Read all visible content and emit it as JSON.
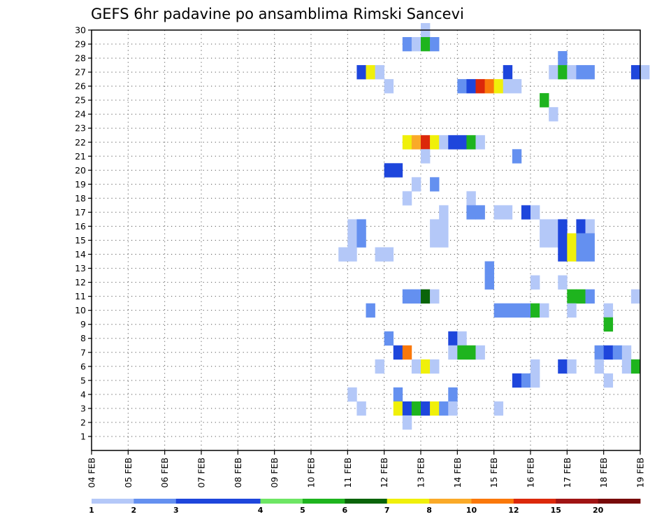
{
  "chart_data": {
    "type": "heatmap",
    "title": "GEFS 6hr padavine po ansamblima Rimski Sancevi",
    "xlabel": "",
    "ylabel": "",
    "x_tick_labels": [
      "04 FEB",
      "05 FEB",
      "06 FEB",
      "07 FEB",
      "08 FEB",
      "09 FEB",
      "10 FEB",
      "11 FEB",
      "12 FEB",
      "13 FEB",
      "14 FEB",
      "15 FEB",
      "16 FEB",
      "17 FEB",
      "18 FEB",
      "19 FEB"
    ],
    "x_range_days": [
      0,
      15
    ],
    "step_hours": 6,
    "y_tick_labels": [
      "1",
      "2",
      "3",
      "4",
      "5",
      "6",
      "7",
      "8",
      "9",
      "10",
      "11",
      "12",
      "13",
      "14",
      "15",
      "16",
      "17",
      "18",
      "19",
      "20",
      "21",
      "22",
      "23",
      "24",
      "25",
      "26",
      "27",
      "28",
      "29",
      "30"
    ],
    "ylim": [
      0,
      30
    ],
    "grid": true,
    "grid_style": "dotted",
    "colorbar": {
      "labels": [
        "1",
        "2",
        "3",
        "4",
        "5",
        "6",
        "7",
        "8",
        "10",
        "12",
        "15",
        "20"
      ],
      "colors": [
        "#b4c8f8",
        "#6490f0",
        "#1e46dc",
        "#1e46dc",
        "#6ee664",
        "#1eb41e",
        "#0a640a",
        "#f0f00a",
        "#faaa28",
        "#fa780a",
        "#dc280a",
        "#a01414",
        "#780a0a"
      ]
    },
    "cell_values": [
      [
        3,
        28,
        1
      ],
      [
        3,
        29,
        1
      ],
      [
        3,
        30,
        1
      ],
      [
        2,
        29,
        1
      ],
      [
        2,
        30,
        1
      ],
      [
        2,
        31,
        1
      ],
      [
        1,
        30,
        1
      ],
      [
        5,
        43,
        2
      ],
      [
        5,
        44,
        1
      ],
      [
        5,
        45,
        1
      ],
      [
        4,
        46,
        1
      ],
      [
        10,
        52,
        1
      ],
      [
        10,
        53,
        1
      ],
      [
        10,
        54,
        5
      ],
      [
        10,
        55,
        6
      ],
      [
        10,
        56,
        6
      ],
      [
        10,
        57,
        5
      ],
      [
        10,
        58,
        6
      ],
      [
        9,
        53,
        1
      ],
      [
        9,
        54,
        1
      ],
      [
        9,
        55,
        1
      ],
      [
        9,
        56,
        1
      ],
      [
        9,
        57,
        1
      ],
      [
        8,
        54,
        1
      ],
      [
        7,
        53,
        1
      ],
      [
        6,
        51,
        1
      ],
      [
        6,
        52,
        1
      ],
      [
        6,
        53,
        1
      ],
      [
        6,
        54,
        1
      ],
      [
        5,
        51,
        1
      ],
      [
        5,
        52,
        1
      ],
      [
        4,
        50,
        1
      ],
      [
        4,
        51,
        1
      ],
      [
        4,
        65,
        1
      ],
      [
        3,
        68,
        1
      ],
      [
        3,
        70,
        1
      ],
      [
        3,
        71,
        2
      ],
      [
        3,
        72,
        1
      ],
      [
        2,
        76,
        1
      ],
      [
        1,
        77,
        3
      ],
      [
        1,
        78,
        2
      ],
      [
        1,
        79,
        1
      ],
      [
        1,
        82,
        1
      ],
      [
        1,
        83,
        3
      ],
      [
        1,
        84,
        3
      ],
      [
        1,
        85,
        1
      ],
      [
        1,
        86,
        1
      ],
      [
        1,
        87,
        1
      ],
      [
        0,
        86,
        1
      ],
      [
        0,
        88,
        1
      ],
      [
        0,
        89,
        1
      ],
      [
        0,
        90,
        1
      ],
      [
        0,
        91,
        1
      ],
      [
        0,
        93,
        2
      ],
      [
        0,
        94,
        1
      ],
      [
        0,
        95,
        2
      ],
      [
        0,
        96,
        2
      ],
      [
        0,
        97,
        1
      ],
      [
        0,
        98,
        1
      ],
      [
        0,
        99,
        2
      ],
      [
        0,
        100,
        1
      ],
      [
        0,
        102,
        1
      ],
      [
        0,
        103,
        2
      ],
      [
        0,
        104,
        1
      ],
      [
        0,
        105,
        2
      ],
      [
        0,
        106,
        1
      ],
      [
        0,
        107,
        1
      ],
      [
        0,
        108,
        1
      ],
      [
        0,
        112,
        2
      ],
      [
        0,
        113,
        1
      ],
      [
        0,
        115,
        1
      ],
      [
        0,
        116,
        1
      ],
      [
        0,
        117,
        2
      ],
      [
        0,
        118,
        1
      ],
      [
        0,
        123,
        1
      ],
      [
        0,
        124,
        1
      ],
      [
        0,
        125,
        2
      ],
      [
        0,
        126,
        1
      ],
      [
        0,
        127,
        1
      ],
      [
        0,
        130,
        1
      ],
      [
        0,
        131,
        1
      ],
      [
        0,
        132,
        1
      ],
      [
        0,
        133,
        2
      ],
      [
        0,
        134,
        1
      ],
      [
        0,
        135,
        1
      ],
      [
        0,
        136,
        1
      ],
      [
        0,
        137,
        2
      ],
      [
        0,
        138,
        1
      ],
      [
        0,
        139,
        2
      ],
      [
        0,
        140,
        1
      ],
      [
        0,
        141,
        2
      ],
      [
        0,
        142,
        1
      ],
      [
        0,
        145,
        1
      ],
      [
        0,
        146,
        1
      ],
      [
        0,
        147,
        2
      ],
      [
        0,
        148,
        1
      ],
      [
        0,
        149,
        2
      ],
      [
        0,
        150,
        1
      ]
    ],
    "cells": [
      {
        "member": 30,
        "col": 36,
        "value": 1
      },
      {
        "member": 29,
        "col": 34,
        "value": 2
      },
      {
        "member": 29,
        "col": 35,
        "value": 1
      },
      {
        "member": 29,
        "col": 36,
        "value": 5
      },
      {
        "member": 29,
        "col": 37,
        "value": 2
      },
      {
        "member": 28,
        "col": 51,
        "value": 2
      },
      {
        "member": 27,
        "col": 29,
        "value": 3
      },
      {
        "member": 27,
        "col": 30,
        "value": 7
      },
      {
        "member": 27,
        "col": 31,
        "value": 1
      },
      {
        "member": 27,
        "col": 45,
        "value": 3
      },
      {
        "member": 27,
        "col": 50,
        "value": 1
      },
      {
        "member": 27,
        "col": 51,
        "value": 5
      },
      {
        "member": 27,
        "col": 52,
        "value": 1
      },
      {
        "member": 27,
        "col": 53,
        "value": 2
      },
      {
        "member": 27,
        "col": 54,
        "value": 2
      },
      {
        "member": 27,
        "col": 59,
        "value": 3
      },
      {
        "member": 27,
        "col": 60,
        "value": 1
      },
      {
        "member": 26,
        "col": 32,
        "value": 1
      },
      {
        "member": 26,
        "col": 40,
        "value": 2
      },
      {
        "member": 26,
        "col": 41,
        "value": 3
      },
      {
        "member": 26,
        "col": 42,
        "value": 12
      },
      {
        "member": 26,
        "col": 43,
        "value": 10
      },
      {
        "member": 26,
        "col": 44,
        "value": 7
      },
      {
        "member": 26,
        "col": 45,
        "value": 1
      },
      {
        "member": 26,
        "col": 46,
        "value": 1
      },
      {
        "member": 25,
        "col": 49,
        "value": 5
      },
      {
        "member": 24,
        "col": 50,
        "value": 1
      },
      {
        "member": 22,
        "col": 34,
        "value": 7
      },
      {
        "member": 22,
        "col": 35,
        "value": 8
      },
      {
        "member": 22,
        "col": 36,
        "value": 12
      },
      {
        "member": 22,
        "col": 37,
        "value": 7
      },
      {
        "member": 22,
        "col": 38,
        "value": 1
      },
      {
        "member": 22,
        "col": 39,
        "value": 3
      },
      {
        "member": 22,
        "col": 40,
        "value": 3
      },
      {
        "member": 22,
        "col": 41,
        "value": 5
      },
      {
        "member": 22,
        "col": 42,
        "value": 1
      },
      {
        "member": 21,
        "col": 36,
        "value": 1
      },
      {
        "member": 21,
        "col": 46,
        "value": 2
      },
      {
        "member": 20,
        "col": 32,
        "value": 3
      },
      {
        "member": 20,
        "col": 33,
        "value": 3
      },
      {
        "member": 19,
        "col": 35,
        "value": 1
      },
      {
        "member": 19,
        "col": 37,
        "value": 2
      },
      {
        "member": 18,
        "col": 34,
        "value": 1
      },
      {
        "member": 18,
        "col": 41,
        "value": 1
      },
      {
        "member": 17,
        "col": 38,
        "value": 1
      },
      {
        "member": 17,
        "col": 41,
        "value": 2
      },
      {
        "member": 17,
        "col": 42,
        "value": 2
      },
      {
        "member": 17,
        "col": 44,
        "value": 1
      },
      {
        "member": 17,
        "col": 45,
        "value": 1
      },
      {
        "member": 17,
        "col": 47,
        "value": 3
      },
      {
        "member": 17,
        "col": 48,
        "value": 1
      },
      {
        "member": 16,
        "col": 28,
        "value": 1
      },
      {
        "member": 16,
        "col": 29,
        "value": 2
      },
      {
        "member": 16,
        "col": 37,
        "value": 1
      },
      {
        "member": 16,
        "col": 38,
        "value": 1
      },
      {
        "member": 16,
        "col": 49,
        "value": 1
      },
      {
        "member": 16,
        "col": 50,
        "value": 1
      },
      {
        "member": 16,
        "col": 51,
        "value": 3
      },
      {
        "member": 16,
        "col": 53,
        "value": 3
      },
      {
        "member": 16,
        "col": 54,
        "value": 1
      },
      {
        "member": 15,
        "col": 28,
        "value": 1
      },
      {
        "member": 15,
        "col": 29,
        "value": 2
      },
      {
        "member": 15,
        "col": 37,
        "value": 1
      },
      {
        "member": 15,
        "col": 38,
        "value": 1
      },
      {
        "member": 15,
        "col": 49,
        "value": 1
      },
      {
        "member": 15,
        "col": 50,
        "value": 1
      },
      {
        "member": 15,
        "col": 51,
        "value": 3
      },
      {
        "member": 15,
        "col": 52,
        "value": 7
      },
      {
        "member": 15,
        "col": 53,
        "value": 2
      },
      {
        "member": 15,
        "col": 54,
        "value": 2
      },
      {
        "member": 14,
        "col": 27,
        "value": 1
      },
      {
        "member": 14,
        "col": 28,
        "value": 1
      },
      {
        "member": 14,
        "col": 31,
        "value": 1
      },
      {
        "member": 14,
        "col": 32,
        "value": 1
      },
      {
        "member": 14,
        "col": 51,
        "value": 3
      },
      {
        "member": 14,
        "col": 52,
        "value": 7
      },
      {
        "member": 14,
        "col": 53,
        "value": 2
      },
      {
        "member": 14,
        "col": 54,
        "value": 2
      },
      {
        "member": 13,
        "col": 43,
        "value": 2
      },
      {
        "member": 12,
        "col": 43,
        "value": 2
      },
      {
        "member": 12,
        "col": 48,
        "value": 1
      },
      {
        "member": 12,
        "col": 51,
        "value": 1
      },
      {
        "member": 11,
        "col": 34,
        "value": 2
      },
      {
        "member": 11,
        "col": 35,
        "value": 2
      },
      {
        "member": 11,
        "col": 36,
        "value": 6
      },
      {
        "member": 11,
        "col": 37,
        "value": 1
      },
      {
        "member": 11,
        "col": 52,
        "value": 5
      },
      {
        "member": 11,
        "col": 53,
        "value": 5
      },
      {
        "member": 11,
        "col": 54,
        "value": 2
      },
      {
        "member": 11,
        "col": 59,
        "value": 1
      },
      {
        "member": 10,
        "col": 30,
        "value": 2
      },
      {
        "member": 10,
        "col": 44,
        "value": 2
      },
      {
        "member": 10,
        "col": 45,
        "value": 2
      },
      {
        "member": 10,
        "col": 46,
        "value": 2
      },
      {
        "member": 10,
        "col": 47,
        "value": 2
      },
      {
        "member": 10,
        "col": 48,
        "value": 5
      },
      {
        "member": 10,
        "col": 49,
        "value": 1
      },
      {
        "member": 10,
        "col": 52,
        "value": 1
      },
      {
        "member": 10,
        "col": 56,
        "value": 1
      },
      {
        "member": 9,
        "col": 56,
        "value": 5
      },
      {
        "member": 8,
        "col": 32,
        "value": 2
      },
      {
        "member": 8,
        "col": 39,
        "value": 3
      },
      {
        "member": 8,
        "col": 40,
        "value": 1
      },
      {
        "member": 7,
        "col": 33,
        "value": 3
      },
      {
        "member": 7,
        "col": 34,
        "value": 10
      },
      {
        "member": 7,
        "col": 39,
        "value": 1
      },
      {
        "member": 7,
        "col": 40,
        "value": 5
      },
      {
        "member": 7,
        "col": 41,
        "value": 5
      },
      {
        "member": 7,
        "col": 42,
        "value": 1
      },
      {
        "member": 7,
        "col": 55,
        "value": 2
      },
      {
        "member": 7,
        "col": 56,
        "value": 3
      },
      {
        "member": 7,
        "col": 57,
        "value": 2
      },
      {
        "member": 7,
        "col": 58,
        "value": 1
      },
      {
        "member": 6,
        "col": 31,
        "value": 1
      },
      {
        "member": 6,
        "col": 35,
        "value": 1
      },
      {
        "member": 6,
        "col": 36,
        "value": 7
      },
      {
        "member": 6,
        "col": 37,
        "value": 1
      },
      {
        "member": 6,
        "col": 48,
        "value": 1
      },
      {
        "member": 6,
        "col": 51,
        "value": 3
      },
      {
        "member": 6,
        "col": 52,
        "value": 1
      },
      {
        "member": 6,
        "col": 55,
        "value": 1
      },
      {
        "member": 6,
        "col": 58,
        "value": 1
      },
      {
        "member": 6,
        "col": 59,
        "value": 5
      },
      {
        "member": 5,
        "col": 46,
        "value": 3
      },
      {
        "member": 5,
        "col": 47,
        "value": 2
      },
      {
        "member": 5,
        "col": 48,
        "value": 1
      },
      {
        "member": 5,
        "col": 56,
        "value": 1
      },
      {
        "member": 4,
        "col": 28,
        "value": 1
      },
      {
        "member": 4,
        "col": 33,
        "value": 2
      },
      {
        "member": 4,
        "col": 39,
        "value": 2
      },
      {
        "member": 3,
        "col": 29,
        "value": 1
      },
      {
        "member": 3,
        "col": 33,
        "value": 7
      },
      {
        "member": 3,
        "col": 34,
        "value": 3
      },
      {
        "member": 3,
        "col": 35,
        "value": 5
      },
      {
        "member": 3,
        "col": 36,
        "value": 3
      },
      {
        "member": 3,
        "col": 37,
        "value": 7
      },
      {
        "member": 3,
        "col": 38,
        "value": 2
      },
      {
        "member": 3,
        "col": 39,
        "value": 1
      },
      {
        "member": 3,
        "col": 44,
        "value": 1
      },
      {
        "member": 2,
        "col": 34,
        "value": 1
      }
    ]
  }
}
